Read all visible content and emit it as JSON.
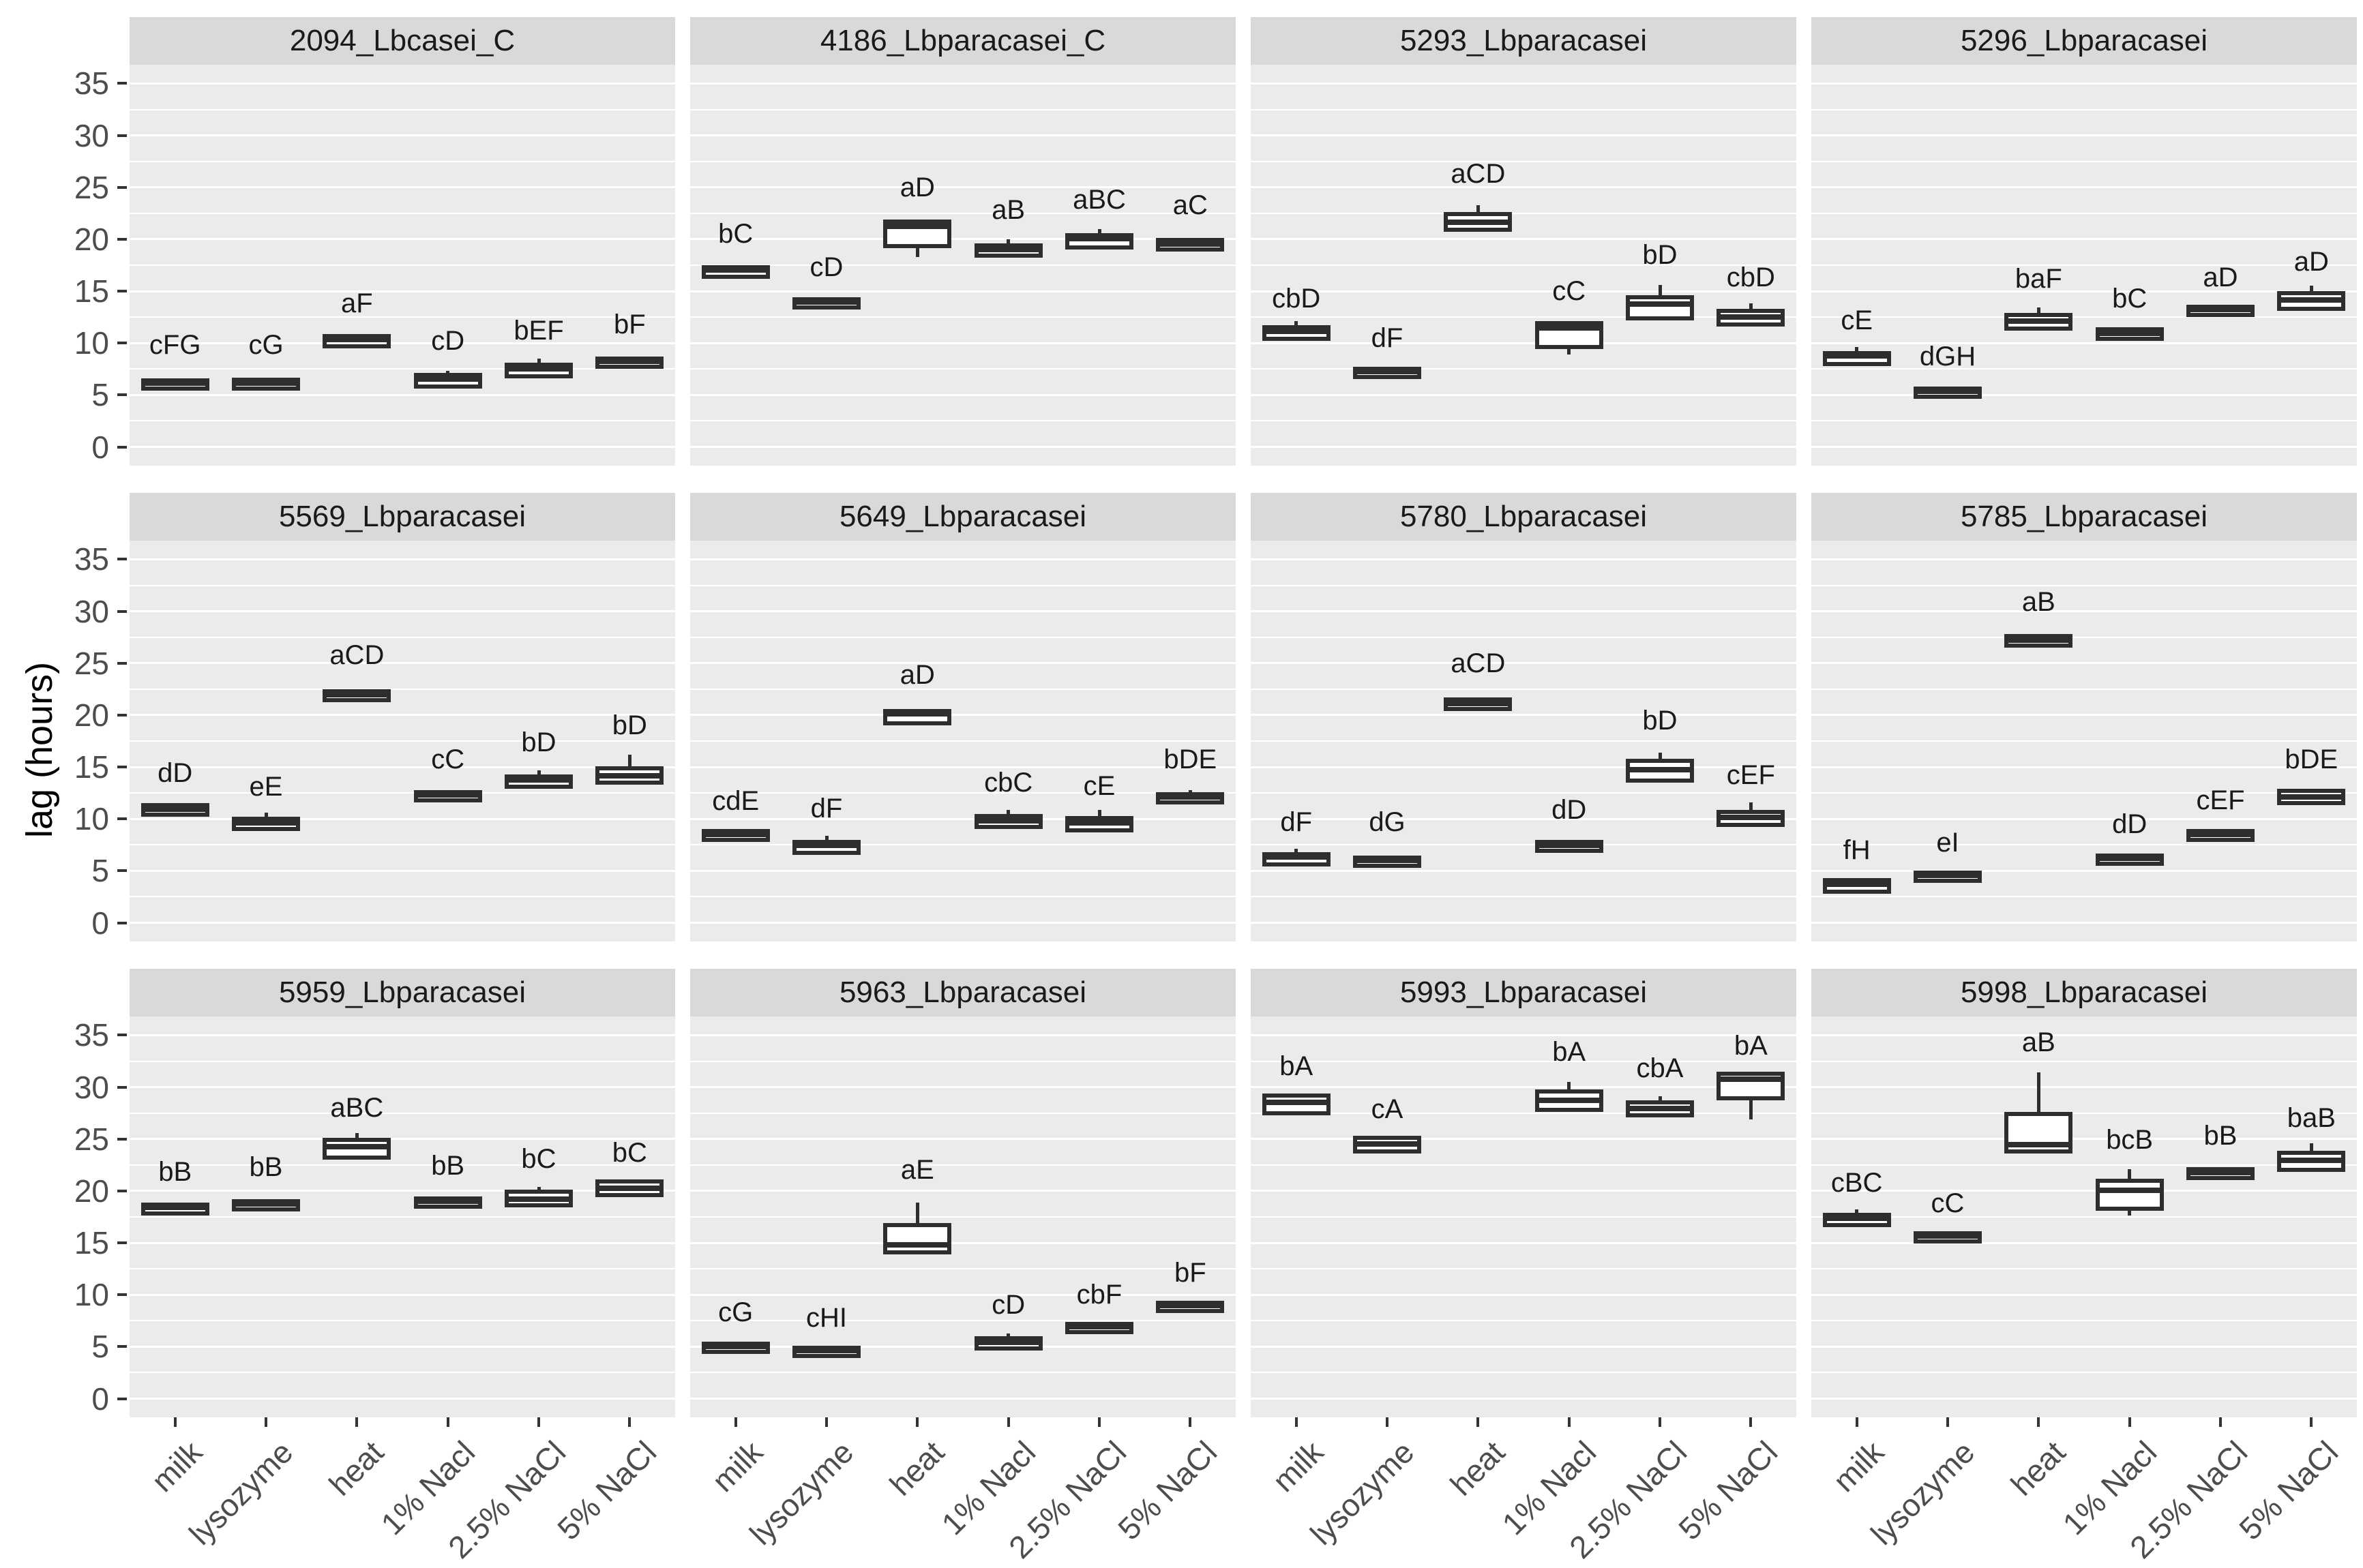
{
  "chart_data": {
    "type": "boxplot",
    "ylabel": "lag (hours)",
    "ylim": [
      0,
      35
    ],
    "y_ticks": [
      0,
      5,
      10,
      15,
      20,
      25,
      30,
      35
    ],
    "grid": "major and minor white gridlines on grey panels",
    "legend_position": "none",
    "x_categories": [
      "milk",
      "lysozyme",
      "heat",
      "1% Nacl",
      "2.5% NaCl",
      "5% NaCl"
    ],
    "facets": [
      {
        "title": "2094_Lbcasei_C",
        "boxes": [
          {
            "cond": "milk",
            "sig": "cFG",
            "sig_y": 9.8,
            "stats": [
              6.2,
              6.2,
              6.4,
              6.6,
              6.6
            ]
          },
          {
            "cond": "lysozyme",
            "sig": "cG",
            "sig_y": 9.8,
            "stats": [
              6.2,
              6.2,
              6.4,
              6.7,
              6.7
            ]
          },
          {
            "cond": "heat",
            "sig": "aF",
            "sig_y": 13.8,
            "stats": [
              10.3,
              10.3,
              10.6,
              10.9,
              10.9
            ]
          },
          {
            "cond": "1% Nacl",
            "sig": "cD",
            "sig_y": 10.2,
            "stats": [
              6.4,
              6.4,
              6.8,
              7.1,
              7.3
            ]
          },
          {
            "cond": "2.5% NaCl",
            "sig": "bEF",
            "sig_y": 11.2,
            "stats": [
              7.4,
              7.4,
              7.8,
              8.1,
              8.5
            ]
          },
          {
            "cond": "5% NaCl",
            "sig": "bF",
            "sig_y": 11.8,
            "stats": [
              8.3,
              8.3,
              8.5,
              8.7,
              8.7
            ]
          }
        ]
      },
      {
        "title": "4186_Lbparacasei_C",
        "boxes": [
          {
            "cond": "milk",
            "sig": "bC",
            "sig_y": 20.5,
            "stats": [
              17.0,
              17.0,
              17.3,
              17.5,
              17.5
            ]
          },
          {
            "cond": "lysozyme",
            "sig": "cD",
            "sig_y": 17.3,
            "stats": [
              14.0,
              14.0,
              14.2,
              14.4,
              14.4
            ]
          },
          {
            "cond": "heat",
            "sig": "aD",
            "sig_y": 25.0,
            "stats": [
              18.3,
              19.9,
              21.5,
              21.9,
              21.9
            ]
          },
          {
            "cond": "1% Nacl",
            "sig": "aB",
            "sig_y": 22.8,
            "stats": [
              19.0,
              19.0,
              19.3,
              19.6,
              20.0
            ]
          },
          {
            "cond": "2.5% NaCl",
            "sig": "aBC",
            "sig_y": 23.8,
            "stats": [
              19.8,
              19.8,
              20.3,
              20.6,
              21.0
            ]
          },
          {
            "cond": "5% NaCl",
            "sig": "aC",
            "sig_y": 23.3,
            "stats": [
              19.6,
              19.6,
              19.8,
              20.1,
              20.1
            ]
          }
        ]
      },
      {
        "title": "5293_Lbparacasei",
        "boxes": [
          {
            "cond": "milk",
            "sig": "cbD",
            "sig_y": 14.3,
            "stats": [
              11.0,
              11.0,
              11.4,
              11.7,
              12.1
            ]
          },
          {
            "cond": "lysozyme",
            "sig": "dF",
            "sig_y": 10.5,
            "stats": [
              7.3,
              7.3,
              7.5,
              7.7,
              7.7
            ]
          },
          {
            "cond": "heat",
            "sig": "aCD",
            "sig_y": 26.3,
            "stats": [
              21.5,
              21.5,
              21.9,
              22.6,
              23.3
            ]
          },
          {
            "cond": "1% Nacl",
            "sig": "cC",
            "sig_y": 15.0,
            "stats": [
              8.9,
              10.2,
              11.7,
              12.1,
              12.1
            ]
          },
          {
            "cond": "2.5% NaCl",
            "sig": "bD",
            "sig_y": 18.5,
            "stats": [
              12.3,
              13.0,
              14.0,
              14.6,
              15.6
            ]
          },
          {
            "cond": "5% NaCl",
            "sig": "cbD",
            "sig_y": 16.3,
            "stats": [
              12.0,
              12.4,
              12.8,
              13.3,
              13.8
            ]
          }
        ]
      },
      {
        "title": "5296_Lbparacasei",
        "boxes": [
          {
            "cond": "milk",
            "sig": "cE",
            "sig_y": 12.2,
            "stats": [
              8.6,
              8.6,
              9.0,
              9.2,
              9.6
            ]
          },
          {
            "cond": "lysozyme",
            "sig": "dGH",
            "sig_y": 8.7,
            "stats": [
              5.4,
              5.4,
              5.6,
              5.8,
              5.8
            ]
          },
          {
            "cond": "heat",
            "sig": "baF",
            "sig_y": 16.2,
            "stats": [
              11.5,
              12.0,
              12.4,
              12.9,
              13.4
            ]
          },
          {
            "cond": "1% Nacl",
            "sig": "bC",
            "sig_y": 14.3,
            "stats": [
              11.0,
              11.0,
              11.2,
              11.5,
              11.5
            ]
          },
          {
            "cond": "2.5% NaCl",
            "sig": "aD",
            "sig_y": 16.3,
            "stats": [
              13.3,
              13.3,
              13.5,
              13.7,
              13.7
            ]
          },
          {
            "cond": "5% NaCl",
            "sig": "aD",
            "sig_y": 17.8,
            "stats": [
              13.5,
              13.9,
              14.4,
              15.0,
              15.5
            ]
          }
        ]
      },
      {
        "title": "5569_Lbparacasei",
        "boxes": [
          {
            "cond": "milk",
            "sig": "dD",
            "sig_y": 14.4,
            "stats": [
              11.0,
              11.0,
              11.2,
              11.5,
              11.5
            ]
          },
          {
            "cond": "lysozyme",
            "sig": "eE",
            "sig_y": 13.1,
            "stats": [
              9.6,
              9.6,
              9.9,
              10.2,
              10.6
            ]
          },
          {
            "cond": "heat",
            "sig": "aCD",
            "sig_y": 25.8,
            "stats": [
              22.0,
              22.0,
              22.2,
              22.5,
              22.5
            ]
          },
          {
            "cond": "1% Nacl",
            "sig": "cC",
            "sig_y": 15.7,
            "stats": [
              12.4,
              12.4,
              12.6,
              12.8,
              12.8
            ]
          },
          {
            "cond": "2.5% NaCl",
            "sig": "bD",
            "sig_y": 17.4,
            "stats": [
              13.7,
              13.7,
              14.0,
              14.3,
              14.7
            ]
          },
          {
            "cond": "5% NaCl",
            "sig": "bD",
            "sig_y": 19.0,
            "stats": [
              14.1,
              14.1,
              14.4,
              15.1,
              16.2
            ]
          }
        ]
      },
      {
        "title": "5649_Lbparacasei",
        "boxes": [
          {
            "cond": "milk",
            "sig": "cdE",
            "sig_y": 11.7,
            "stats": [
              8.6,
              8.6,
              8.8,
              9.0,
              9.0
            ]
          },
          {
            "cond": "lysozyme",
            "sig": "dF",
            "sig_y": 11.0,
            "stats": [
              7.3,
              7.3,
              7.7,
              8.0,
              8.4
            ]
          },
          {
            "cond": "heat",
            "sig": "aD",
            "sig_y": 23.9,
            "stats": [
              19.3,
              19.8,
              20.4,
              20.6,
              20.6
            ]
          },
          {
            "cond": "1% Nacl",
            "sig": "cbC",
            "sig_y": 13.5,
            "stats": [
              9.3,
              9.8,
              10.1,
              10.5,
              10.9
            ]
          },
          {
            "cond": "2.5% NaCl",
            "sig": "cE",
            "sig_y": 13.2,
            "stats": [
              9.0,
              9.5,
              9.9,
              10.3,
              10.9
            ]
          },
          {
            "cond": "5% NaCl",
            "sig": "bDE",
            "sig_y": 15.7,
            "stats": [
              12.0,
              12.2,
              12.4,
              12.6,
              12.8
            ]
          }
        ]
      },
      {
        "title": "5780_Lbparacasei",
        "boxes": [
          {
            "cond": "milk",
            "sig": "dF",
            "sig_y": 9.7,
            "stats": [
              6.2,
              6.2,
              6.6,
              6.8,
              7.1
            ]
          },
          {
            "cond": "lysozyme",
            "sig": "dG",
            "sig_y": 9.7,
            "stats": [
              5.9,
              6.1,
              6.3,
              6.5,
              6.5
            ]
          },
          {
            "cond": "heat",
            "sig": "aCD",
            "sig_y": 25.0,
            "stats": [
              21.2,
              21.2,
              21.4,
              21.7,
              21.7
            ]
          },
          {
            "cond": "1% Nacl",
            "sig": "dD",
            "sig_y": 10.9,
            "stats": [
              7.2,
              7.5,
              7.7,
              8.0,
              8.0
            ]
          },
          {
            "cond": "2.5% NaCl",
            "sig": "bD",
            "sig_y": 19.5,
            "stats": [
              13.6,
              14.3,
              15.0,
              15.8,
              16.4
            ]
          },
          {
            "cond": "5% NaCl",
            "sig": "cEF",
            "sig_y": 14.2,
            "stats": [
              10.0,
              10.0,
              10.4,
              10.9,
              11.6
            ]
          }
        ]
      },
      {
        "title": "5785_Lbparacasei",
        "boxes": [
          {
            "cond": "milk",
            "sig": "fH",
            "sig_y": 7.0,
            "stats": [
              3.2,
              3.6,
              4.0,
              4.3,
              4.3
            ]
          },
          {
            "cond": "lysozyme",
            "sig": "eI",
            "sig_y": 7.7,
            "stats": [
              4.6,
              4.6,
              4.8,
              5.0,
              5.0
            ]
          },
          {
            "cond": "heat",
            "sig": "aB",
            "sig_y": 30.9,
            "stats": [
              27.3,
              27.3,
              27.5,
              27.8,
              27.8
            ]
          },
          {
            "cond": "1% Nacl",
            "sig": "dD",
            "sig_y": 9.5,
            "stats": [
              6.3,
              6.3,
              6.5,
              6.7,
              6.7
            ]
          },
          {
            "cond": "2.5% NaCl",
            "sig": "cEF",
            "sig_y": 11.8,
            "stats": [
              8.6,
              8.6,
              8.8,
              9.0,
              9.0
            ]
          },
          {
            "cond": "5% NaCl",
            "sig": "bDE",
            "sig_y": 15.7,
            "stats": [
              11.7,
              12.1,
              12.4,
              12.9,
              12.9
            ]
          }
        ]
      },
      {
        "title": "5959_Lbparacasei",
        "boxes": [
          {
            "cond": "milk",
            "sig": "bB",
            "sig_y": 21.8,
            "stats": [
              18.4,
              18.4,
              18.7,
              18.9,
              18.9
            ]
          },
          {
            "cond": "lysozyme",
            "sig": "bB",
            "sig_y": 22.3,
            "stats": [
              18.8,
              18.8,
              19.0,
              19.2,
              19.2
            ]
          },
          {
            "cond": "heat",
            "sig": "aBC",
            "sig_y": 28.0,
            "stats": [
              23.2,
              23.8,
              24.5,
              25.1,
              25.6
            ]
          },
          {
            "cond": "1% Nacl",
            "sig": "bB",
            "sig_y": 22.4,
            "stats": [
              19.1,
              19.1,
              19.3,
              19.5,
              19.5
            ]
          },
          {
            "cond": "2.5% NaCl",
            "sig": "bC",
            "sig_y": 23.1,
            "stats": [
              18.8,
              19.2,
              19.5,
              20.1,
              20.4
            ]
          },
          {
            "cond": "5% NaCl",
            "sig": "bC",
            "sig_y": 23.7,
            "stats": [
              19.6,
              20.2,
              20.5,
              21.1,
              21.1
            ]
          }
        ]
      },
      {
        "title": "5963_Lbparacasei",
        "boxes": [
          {
            "cond": "milk",
            "sig": "cG",
            "sig_y": 8.3,
            "stats": [
              5.1,
              5.1,
              5.3,
              5.5,
              5.5
            ]
          },
          {
            "cond": "lysozyme",
            "sig": "cHI",
            "sig_y": 7.8,
            "stats": [
              4.7,
              4.7,
              4.9,
              5.1,
              5.1
            ]
          },
          {
            "cond": "heat",
            "sig": "aE",
            "sig_y": 22.0,
            "stats": [
              14.3,
              14.7,
              15.1,
              16.9,
              18.9
            ]
          },
          {
            "cond": "1% Nacl",
            "sig": "cD",
            "sig_y": 9.0,
            "stats": [
              5.4,
              5.4,
              5.7,
              6.0,
              6.3
            ]
          },
          {
            "cond": "2.5% NaCl",
            "sig": "cbF",
            "sig_y": 10.0,
            "stats": [
              6.8,
              7.0,
              7.2,
              7.4,
              7.4
            ]
          },
          {
            "cond": "5% NaCl",
            "sig": "bF",
            "sig_y": 12.1,
            "stats": [
              9.0,
              9.0,
              9.2,
              9.4,
              9.4
            ]
          }
        ]
      },
      {
        "title": "5993_Lbparacasei",
        "boxes": [
          {
            "cond": "milk",
            "sig": "bA",
            "sig_y": 32.0,
            "stats": [
              27.5,
              28.1,
              28.8,
              29.4,
              29.4
            ]
          },
          {
            "cond": "lysozyme",
            "sig": "cA",
            "sig_y": 27.9,
            "stats": [
              23.7,
              24.4,
              24.8,
              25.3,
              25.3
            ]
          },
          {
            "cond": "heat",
            "sig": "",
            "sig_y": null,
            "stats": null
          },
          {
            "cond": "1% Nacl",
            "sig": "bA",
            "sig_y": 33.4,
            "stats": [
              27.7,
              28.4,
              29.0,
              29.8,
              30.5
            ]
          },
          {
            "cond": "2.5% NaCl",
            "sig": "cbA",
            "sig_y": 31.8,
            "stats": [
              27.4,
              27.9,
              28.2,
              28.7,
              29.1
            ]
          },
          {
            "cond": "5% NaCl",
            "sig": "bA",
            "sig_y": 34.0,
            "stats": [
              26.9,
              29.5,
              31.0,
              31.5,
              31.5
            ]
          }
        ]
      },
      {
        "title": "5998_Lbparacasei",
        "boxes": [
          {
            "cond": "milk",
            "sig": "cBC",
            "sig_y": 20.8,
            "stats": [
              17.3,
              17.3,
              17.6,
              17.9,
              18.2
            ]
          },
          {
            "cond": "lysozyme",
            "sig": "cC",
            "sig_y": 18.8,
            "stats": [
              15.7,
              15.7,
              15.9,
              16.1,
              16.1
            ]
          },
          {
            "cond": "heat",
            "sig": "aB",
            "sig_y": 34.3,
            "stats": [
              24.4,
              24.4,
              24.7,
              27.6,
              31.4
            ]
          },
          {
            "cond": "1% Nacl",
            "sig": "bcB",
            "sig_y": 24.9,
            "stats": [
              17.6,
              18.9,
              20.3,
              21.2,
              22.1
            ]
          },
          {
            "cond": "2.5% NaCl",
            "sig": "bB",
            "sig_y": 25.3,
            "stats": [
              21.3,
              21.8,
              22.0,
              22.3,
              22.3
            ]
          },
          {
            "cond": "5% NaCl",
            "sig": "baB",
            "sig_y": 27.0,
            "stats": [
              22.0,
              22.6,
              23.2,
              23.9,
              24.6
            ]
          }
        ]
      }
    ],
    "colors": {
      "panel_bg": "#EBEBEB",
      "strip_bg": "#D9D9D9",
      "gridline": "#FFFFFF",
      "box_stroke": "#2E2E2E",
      "strip_text": "#1A1A1A",
      "axis_text": "#4D4D4D",
      "sig_text": "#1A1A1A"
    }
  }
}
